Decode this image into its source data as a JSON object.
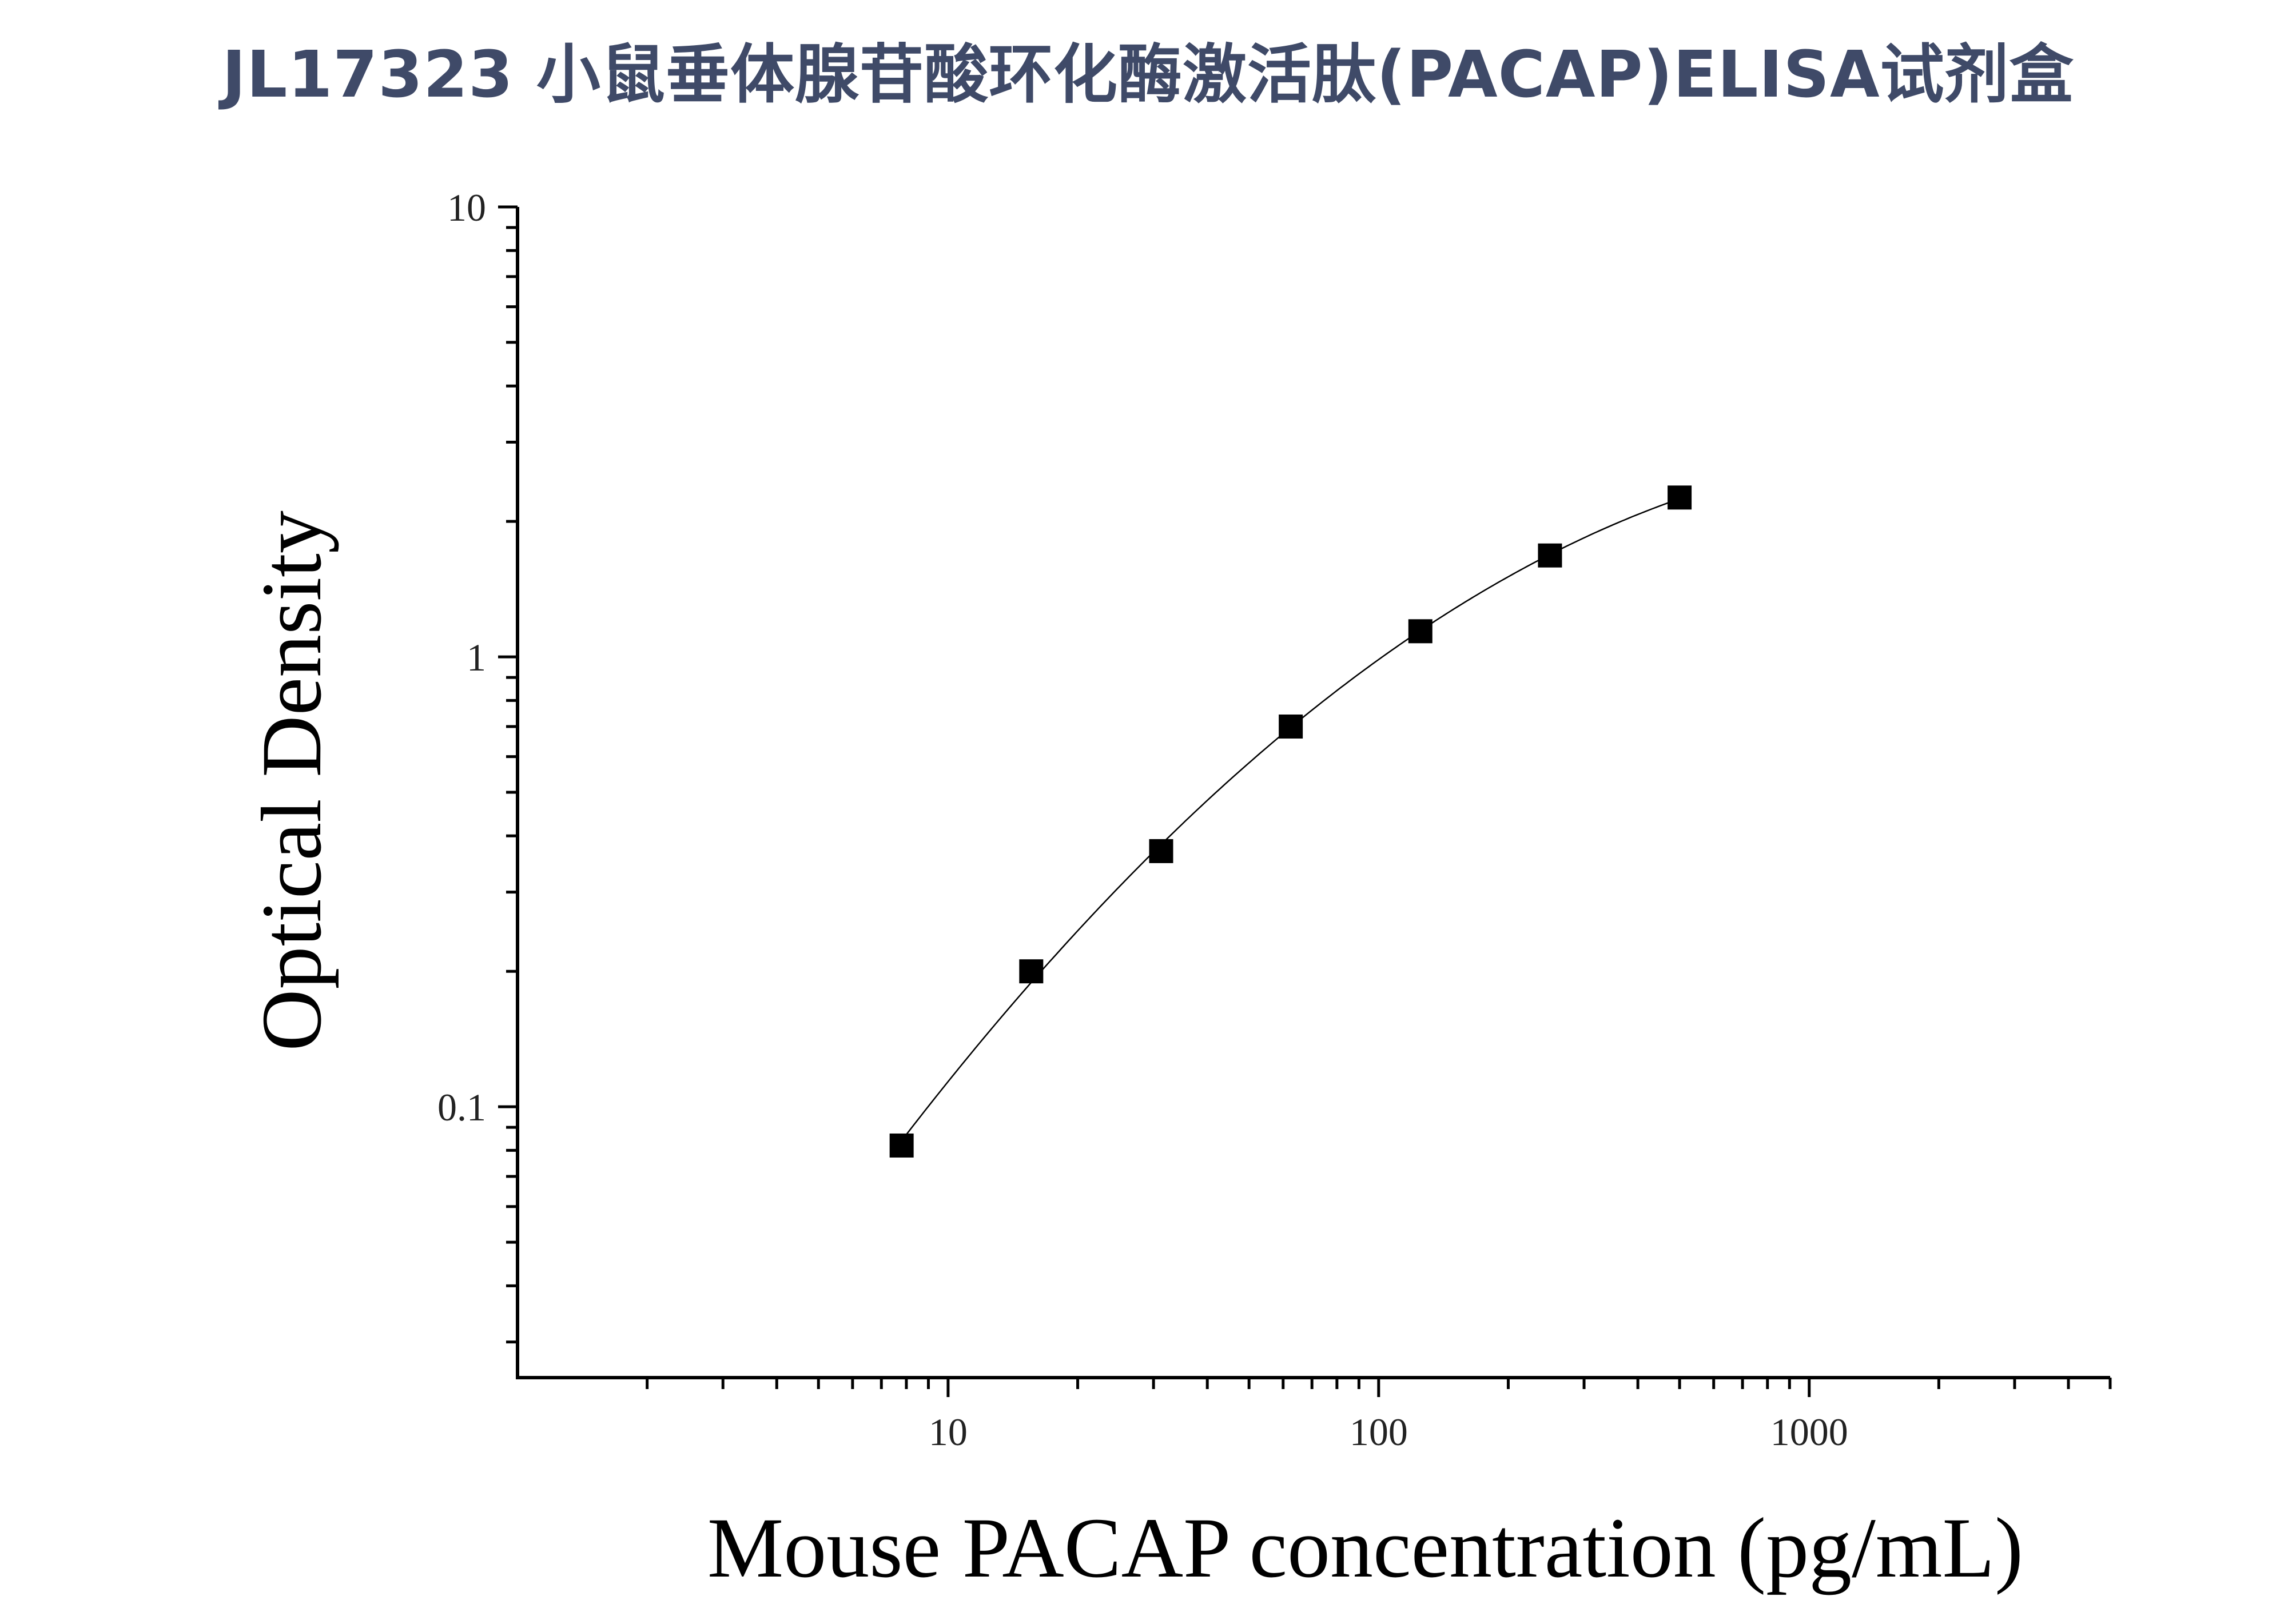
{
  "title": "JL17323 小鼠垂体腺苷酸环化酶激活肽(PACAP)ELISA试剂盒",
  "chart_data": {
    "type": "scatter",
    "title": "JL17323 小鼠垂体腺苷酸环化酶激活肽(PACAP)ELISA试剂盒",
    "xlabel": "Mouse PACAP concentration (pg/mL)",
    "ylabel": "Optical Density",
    "xscale": "log",
    "yscale": "log",
    "xlim": [
      1,
      5000
    ],
    "ylim": [
      0.025,
      10
    ],
    "x_ticks": [
      10,
      100,
      1000
    ],
    "x_tick_labels": [
      "10",
      "100",
      "1000"
    ],
    "y_ticks": [
      0.1,
      1,
      10
    ],
    "y_tick_labels": [
      "0.1",
      "1",
      "10"
    ],
    "grid": false,
    "series": [
      {
        "x": [
          7.8,
          15.6,
          31.25,
          62.5,
          125,
          250,
          500
        ],
        "y": [
          0.082,
          0.2,
          0.37,
          0.7,
          1.14,
          1.68,
          2.26
        ],
        "marker": "square",
        "fit_line": true,
        "color": "#000000"
      }
    ]
  }
}
